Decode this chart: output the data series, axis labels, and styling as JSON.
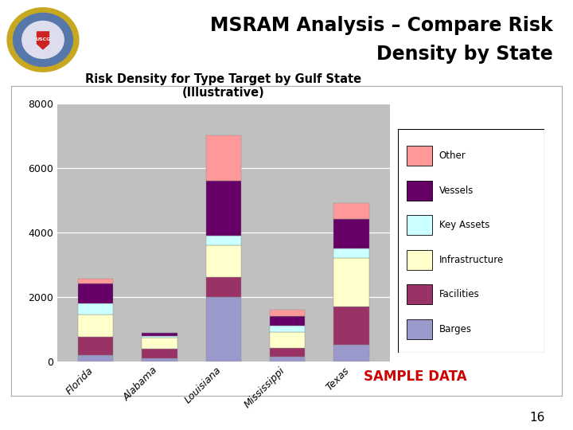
{
  "title_main_line1": "MSRAM Analysis – Compare Risk",
  "title_main_line2": "Density by State",
  "chart_title": "Risk Density for Type Target by Gulf State\n(Illustrative)",
  "states": [
    "Florida",
    "Alabama",
    "Louisiana",
    "Mississippi",
    "Texas"
  ],
  "categories": [
    "Barges",
    "Facilities",
    "Infrastructure",
    "Key Assets",
    "Vessels",
    "Other"
  ],
  "colors": [
    "#9999cc",
    "#993366",
    "#ffffcc",
    "#ccffff",
    "#660066",
    "#ff9999"
  ],
  "data": {
    "Florida": [
      200,
      550,
      700,
      350,
      600,
      150
    ],
    "Alabama": [
      80,
      300,
      350,
      50,
      100,
      0
    ],
    "Louisiana": [
      2000,
      600,
      1000,
      300,
      1700,
      1400
    ],
    "Mississippi": [
      130,
      280,
      500,
      180,
      300,
      200
    ],
    "Texas": [
      500,
      1200,
      1500,
      300,
      900,
      500
    ]
  },
  "ylim": [
    0,
    8000
  ],
  "yticks": [
    0,
    2000,
    4000,
    6000,
    8000
  ],
  "sample_data_color": "#cc0000",
  "page_number": "16",
  "plot_bg_color": "#c0c0c0",
  "outer_bg": "#ffffff",
  "slide_bg": "#f0f0f0",
  "header_line_color": "#000000",
  "chart_border_color": "#aaaaaa"
}
